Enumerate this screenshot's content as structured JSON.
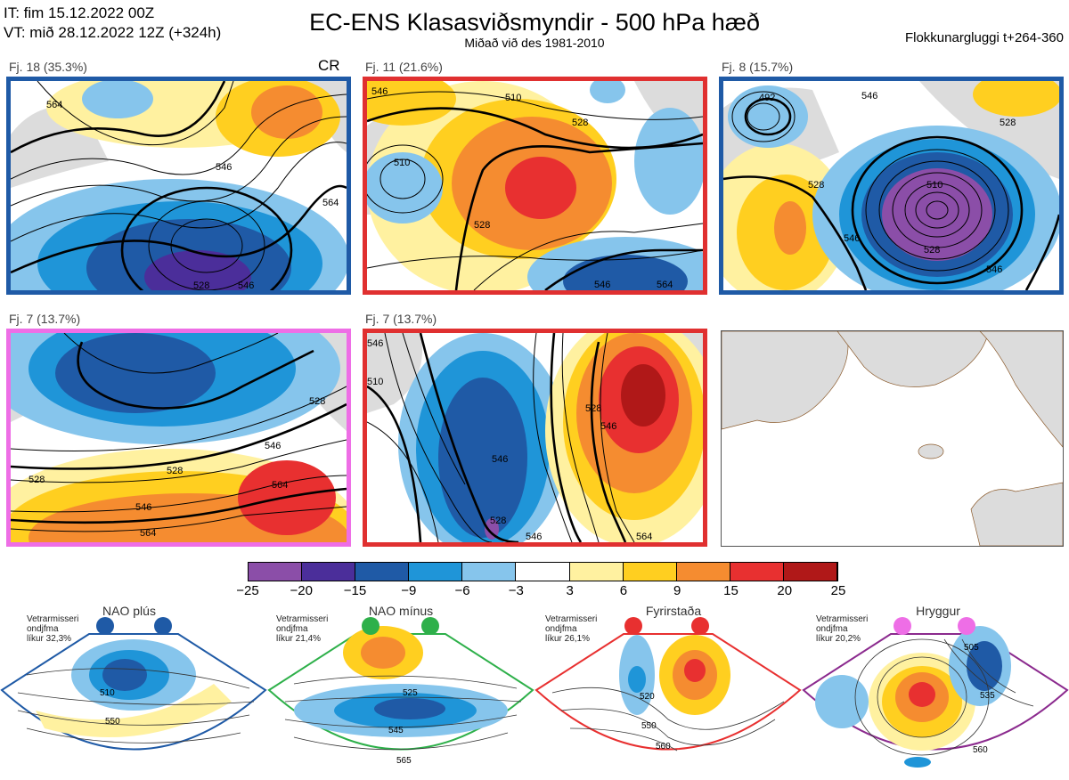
{
  "header": {
    "it_line": "IT: fim 15.12.2022 00Z",
    "vt_line": "VT: mið 28.12.2022 12Z  (+324h)",
    "title": "EC-ENS Klasasviðsmyndir - 500 hPa hæð",
    "subtitle": "Miðað við des 1981-2010",
    "window_label": "Flokkunargluggi t+264-360"
  },
  "panels": [
    {
      "label": "Fj. 18 (35.3%)",
      "cr": "CR",
      "border_color": "#1f5aa6",
      "contours": [
        {
          "label": "564",
          "role": "left"
        },
        {
          "label": "546",
          "role": "mid"
        },
        {
          "label": "528",
          "role": "bottom"
        },
        {
          "label": "546",
          "role": "bottom-right"
        },
        {
          "label": "564",
          "role": "right"
        }
      ]
    },
    {
      "label": "Fj. 11 (21.6%)",
      "border_color": "#e03030",
      "contours": [
        {
          "label": "546",
          "role": "top-left"
        },
        {
          "label": "510",
          "role": "top"
        },
        {
          "label": "528",
          "role": "right"
        },
        {
          "label": "510",
          "role": "low-left"
        },
        {
          "label": "528",
          "role": "bottom-left"
        },
        {
          "label": "546",
          "role": "bottom"
        },
        {
          "label": "564",
          "role": "bottom-right"
        }
      ]
    },
    {
      "label": "Fj. 8 (15.7%)",
      "border_color": "#1f5aa6",
      "contours": [
        {
          "label": "492",
          "role": "top-left"
        },
        {
          "label": "546",
          "role": "top-right"
        },
        {
          "label": "528",
          "role": "right"
        },
        {
          "label": "528",
          "role": "left"
        },
        {
          "label": "510",
          "role": "center"
        },
        {
          "label": "546",
          "role": "mid"
        },
        {
          "label": "528",
          "role": "bottom"
        },
        {
          "label": "546",
          "role": "bottom-right"
        }
      ]
    },
    {
      "label": "Fj. 7 (13.7%)",
      "border_color": "#ee6ee6",
      "contours": [
        {
          "label": "528",
          "role": "right"
        },
        {
          "label": "546",
          "role": "right-mid"
        },
        {
          "label": "528",
          "role": "left"
        },
        {
          "label": "528",
          "role": "mid"
        },
        {
          "label": "564",
          "role": "red-center"
        },
        {
          "label": "546",
          "role": "lower"
        },
        {
          "label": "564",
          "role": "bottom"
        }
      ]
    },
    {
      "label": "Fj. 7 (13.7%)",
      "border_color": "#e03030",
      "contours": [
        {
          "label": "546",
          "role": "top-left"
        },
        {
          "label": "510",
          "role": "left"
        },
        {
          "label": "528",
          "role": "right"
        },
        {
          "label": "546",
          "role": "right-mid"
        },
        {
          "label": "546",
          "role": "center"
        },
        {
          "label": "528",
          "role": "bottom"
        },
        {
          "label": "546",
          "role": "bottom-mid"
        },
        {
          "label": "564",
          "role": "bottom-right"
        }
      ]
    }
  ],
  "colorbar": {
    "ticks": [
      "−25",
      "−20",
      "−15",
      "−9",
      "−6",
      "−3",
      "3",
      "6",
      "9",
      "15",
      "20",
      "25"
    ],
    "colors": [
      "#8b4ea8",
      "#4b2e9a",
      "#1f5aa6",
      "#1f95d8",
      "#86c5ec",
      "#ffffff",
      "#fff1a0",
      "#ffcf20",
      "#f58c30",
      "#e83030",
      "#b01818"
    ]
  },
  "regimes": [
    {
      "name": "NAO plús",
      "info": [
        "Vetrarmisseri",
        "ondjfma",
        "líkur 32,3%"
      ],
      "dot_color": "#1f5aa6",
      "frame_color": "#1f5aa6",
      "contours": [
        "510",
        "550"
      ]
    },
    {
      "name": "NAO mínus",
      "info": [
        "Vetrarmisseri",
        "ondjfma",
        "líkur 21,4%"
      ],
      "dot_color": "#2eb04a",
      "frame_color": "#2eb04a",
      "contours": [
        "525",
        "545",
        "565"
      ]
    },
    {
      "name": "Fyrirstaða",
      "info": [
        "Vetrarmisseri",
        "ondjfma",
        "líkur 26,1%"
      ],
      "dot_color": "#e83030",
      "frame_color": "#e83030",
      "contours": [
        "520",
        "550",
        "560"
      ]
    },
    {
      "name": "Hryggur",
      "info": [
        "Vetrarmisseri",
        "ondjfma",
        "líkur 20,2%"
      ],
      "dot_color": "#ee6ee6",
      "frame_color": "#8b2a8e",
      "contours": [
        "505",
        "535",
        "560"
      ]
    }
  ],
  "icons": {
    "land": "coastline-map-icon",
    "dot": "regime-dot-icon"
  }
}
